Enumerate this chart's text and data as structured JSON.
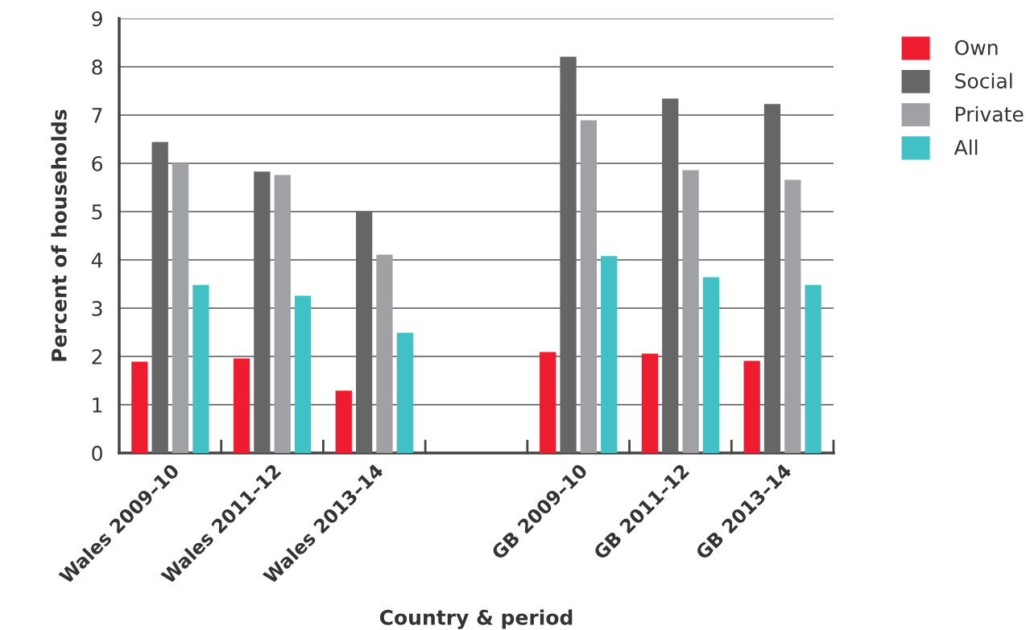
{
  "chart_data": {
    "type": "bar",
    "xlabel": "Country & period",
    "ylabel": "Percent of households",
    "categories": [
      "Wales 2009–10",
      "Wales 2011–12",
      "Wales 2013–14",
      null,
      "GB 2009–10",
      "GB 2011–12",
      "GB 2013–14"
    ],
    "series": [
      {
        "name": "Own",
        "color": "#ed1c2e",
        "values": [
          1.89,
          1.96,
          1.29,
          null,
          2.09,
          2.06,
          1.91
        ]
      },
      {
        "name": "Social",
        "color": "#666666",
        "values": [
          6.44,
          5.83,
          5.0,
          null,
          8.21,
          7.34,
          7.23
        ]
      },
      {
        "name": "Private",
        "color": "#a0a1a5",
        "values": [
          6.0,
          5.76,
          4.11,
          null,
          6.89,
          5.86,
          5.66
        ]
      },
      {
        "name": "All",
        "color": "#41c0c6",
        "values": [
          3.48,
          3.26,
          2.49,
          null,
          4.08,
          3.64,
          3.48
        ]
      }
    ],
    "ylim": [
      0,
      9
    ],
    "yticks": [
      0,
      1,
      2,
      3,
      4,
      5,
      6,
      7,
      8,
      9
    ],
    "grid": "y",
    "legend": "top right"
  }
}
